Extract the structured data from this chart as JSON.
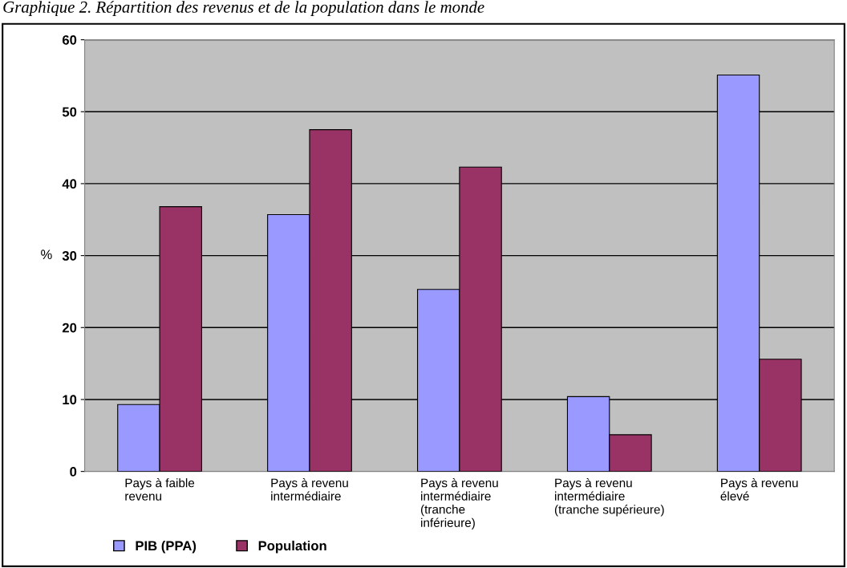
{
  "chart_data": {
    "type": "bar",
    "title": "Graphique 2. Répartition des revenus et de la population dans le monde",
    "ylabel": "%",
    "categories": [
      "Pays à faible\nrevenu",
      "Pays à revenu\nintermédiaire",
      "Pays à revenu\nintermédiaire\n(tranche\ninférieure)",
      "Pays à revenu\nintermédiaire\n(tranche supérieure)",
      "Pays à revenu\nélevé"
    ],
    "series": [
      {
        "name": "PIB (PPA)",
        "color": "#9999ff",
        "values": [
          9.3,
          35.7,
          25.3,
          10.4,
          55.1
        ]
      },
      {
        "name": "Population",
        "color": "#993366",
        "values": [
          36.8,
          47.5,
          42.3,
          5.1,
          15.6
        ]
      }
    ],
    "ylim": [
      0,
      60
    ],
    "yticks": [
      0,
      10,
      20,
      30,
      40,
      50,
      60
    ],
    "grid": "y",
    "legend": "bottom left"
  }
}
